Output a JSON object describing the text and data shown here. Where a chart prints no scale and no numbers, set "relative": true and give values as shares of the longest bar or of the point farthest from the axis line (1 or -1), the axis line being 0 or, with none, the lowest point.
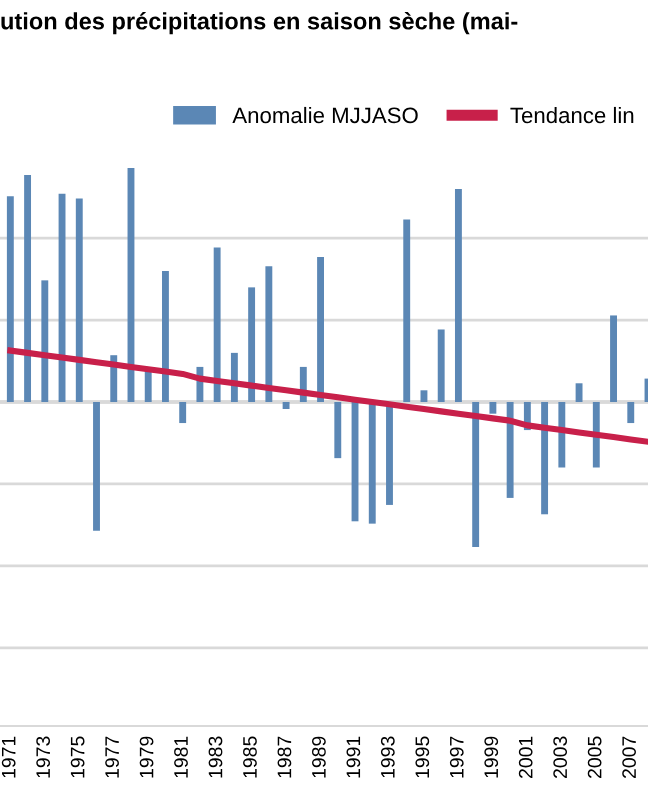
{
  "chart_data": {
    "type": "bar",
    "title": "ution des précipitations en saison sèche (mai-",
    "relative": true,
    "grid": "y",
    "legend": "top",
    "categories": [
      "1971",
      null,
      "1973",
      null,
      "1975",
      null,
      "1977",
      null,
      "1979",
      null,
      "1981",
      null,
      "1983",
      null,
      "1985",
      null,
      "1987",
      null,
      "1989",
      null,
      "1991",
      null,
      "1993",
      null,
      "1995",
      null,
      "1997",
      null,
      "1999",
      null,
      "2001",
      null,
      "2003",
      null,
      "2005",
      null,
      "2007",
      null
    ],
    "series": [
      {
        "name": "Anomalie MJJASO",
        "color": "#5b87b5",
        "values": [
          0.88,
          0.97,
          0.52,
          0.89,
          0.87,
          -0.55,
          0.2,
          1.0,
          0.14,
          0.56,
          -0.09,
          0.15,
          0.66,
          0.21,
          0.49,
          0.58,
          -0.03,
          0.15,
          0.62,
          -0.24,
          -0.51,
          -0.52,
          -0.44,
          0.78,
          0.05,
          0.31,
          0.91,
          -0.62,
          -0.05,
          -0.41,
          -0.12,
          -0.48,
          -0.28,
          0.08,
          -0.28,
          0.37,
          -0.09,
          0.1
        ]
      },
      {
        "name": "Tendance lin",
        "type": "line",
        "color": "#c8204a",
        "values": [
          0.22,
          0.21,
          0.2,
          0.19,
          0.18,
          0.17,
          0.16,
          0.15,
          0.14,
          0.13,
          0.12,
          0.1,
          0.09,
          0.08,
          0.07,
          0.06,
          0.05,
          0.04,
          0.03,
          0.02,
          0.01,
          0.0,
          -0.01,
          -0.02,
          -0.03,
          -0.04,
          -0.05,
          -0.06,
          -0.07,
          -0.08,
          -0.1,
          -0.11,
          -0.12,
          -0.13,
          -0.14,
          -0.15,
          -0.16,
          -0.17
        ]
      }
    ]
  }
}
